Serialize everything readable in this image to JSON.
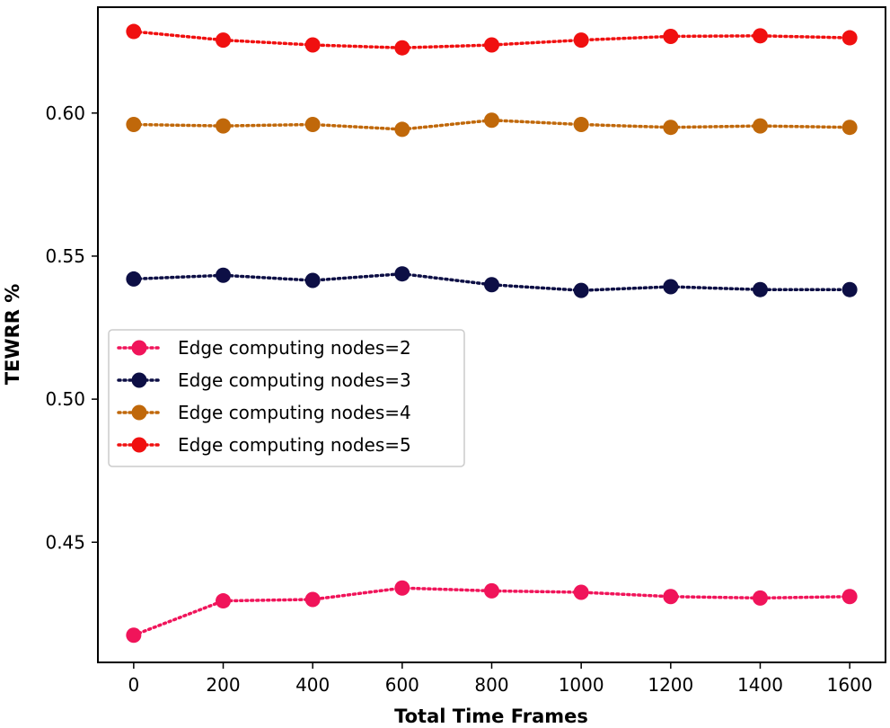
{
  "chart_data": {
    "type": "line",
    "xlabel": "Total Time Frames",
    "ylabel": "TEWRR %",
    "x": [
      0,
      200,
      400,
      600,
      800,
      1000,
      1200,
      1400,
      1600
    ],
    "xticks": [
      "0",
      "200",
      "400",
      "600",
      "800",
      "1000",
      "1200",
      "1400",
      "1600"
    ],
    "xlim": [
      -80,
      1680
    ],
    "yticks": [
      "0.45",
      "0.50",
      "0.55",
      "0.60"
    ],
    "ylim": [
      0.408,
      0.637
    ],
    "grid": false,
    "legend_position": "center-left",
    "series": [
      {
        "name": "Edge computing nodes=2",
        "color": "#f0145a",
        "values": [
          0.4175,
          0.4295,
          0.43,
          0.434,
          0.433,
          0.4325,
          0.431,
          0.4305,
          0.431
        ]
      },
      {
        "name": "Edge computing nodes=3",
        "color": "#0d0f45",
        "values": [
          0.542,
          0.5433,
          0.5415,
          0.5438,
          0.54,
          0.538,
          0.5393,
          0.5383,
          0.5383
        ]
      },
      {
        "name": "Edge computing nodes=4",
        "color": "#c0680a",
        "values": [
          0.596,
          0.5955,
          0.596,
          0.5943,
          0.5975,
          0.596,
          0.595,
          0.5955,
          0.595
        ]
      },
      {
        "name": "Edge computing nodes=5",
        "color": "#f01010",
        "values": [
          0.6285,
          0.6255,
          0.6238,
          0.6228,
          0.6238,
          0.6255,
          0.6268,
          0.627,
          0.6263
        ]
      }
    ]
  }
}
